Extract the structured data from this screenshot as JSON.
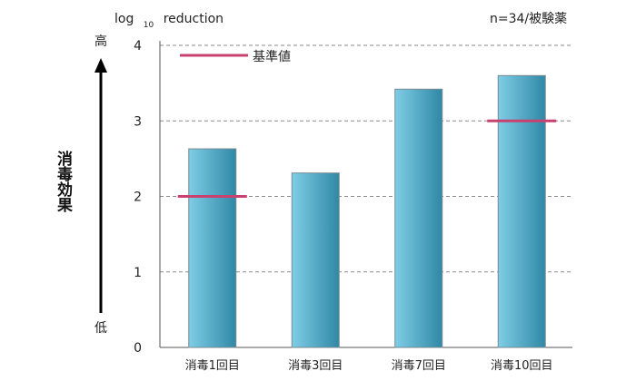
{
  "chart_data": {
    "type": "bar",
    "ylabel": "log 10 reduction",
    "ylabel_main": "log",
    "ylabel_sub": "10",
    "ylabel_tail": "reduction",
    "note": "n=34/被験薬",
    "categories": [
      "消毒1回目",
      "消毒3回目",
      "消毒7回目",
      "消毒10回目"
    ],
    "values": [
      2.63,
      2.31,
      3.42,
      3.6
    ],
    "reference": {
      "label": "基準値",
      "color": "#c9416e",
      "values": [
        2.0,
        null,
        null,
        3.0
      ]
    },
    "ylim": [
      0,
      4
    ],
    "yticks": [
      0,
      1,
      2,
      3,
      4
    ],
    "grid": "dashed",
    "bar_color_light": "#7fcde6",
    "bar_color_dark": "#2f88a6",
    "side_axis": {
      "label": "消毒効果",
      "high": "高",
      "low": "低"
    }
  }
}
